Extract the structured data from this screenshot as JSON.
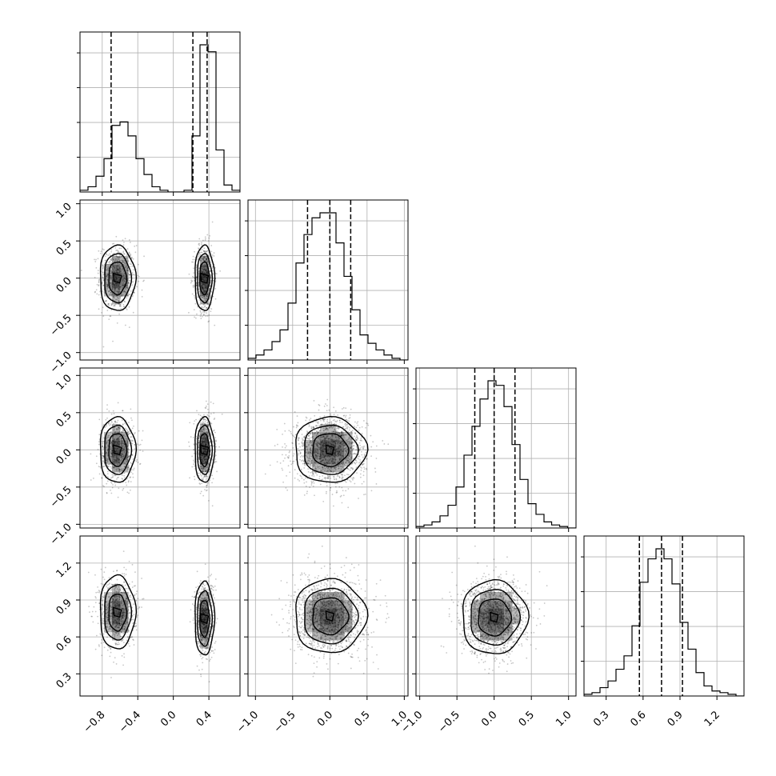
{
  "chart_data": {
    "type": "corner",
    "title": "",
    "parameters": [
      {
        "label": "",
        "range": [
          -1.05,
          0.75
        ],
        "ticks": [
          -0.8,
          -0.4,
          0.0,
          0.4
        ],
        "tick_labels": [
          "−0.8",
          "−0.4",
          "0.0",
          "0.4"
        ],
        "quantiles": [
          -0.7,
          0.22,
          0.38
        ]
      },
      {
        "label": "",
        "range": [
          -1.1,
          1.05
        ],
        "ticks": [
          -1.0,
          -0.5,
          0.0,
          0.5,
          1.0
        ],
        "tick_labels": [
          "−1.0",
          "−0.5",
          "0.0",
          "0.5",
          "1.0"
        ],
        "quantiles": [
          -0.3,
          0.0,
          0.28
        ]
      },
      {
        "label": "",
        "range": [
          -1.05,
          1.1
        ],
        "ticks": [
          -1.0,
          -0.5,
          0.0,
          0.5,
          1.0
        ],
        "tick_labels": [
          "−1.0",
          "−0.5",
          "0.0",
          "0.5",
          "1.0"
        ],
        "quantiles": [
          -0.26,
          0.0,
          0.28
        ]
      },
      {
        "label": "",
        "range": [
          0.12,
          1.42
        ],
        "ticks": [
          0.3,
          0.6,
          0.9,
          1.2
        ],
        "tick_labels": [
          "0.3",
          "0.6",
          "0.9",
          "1.2"
        ],
        "quantiles": [
          0.57,
          0.75,
          0.92
        ]
      }
    ],
    "histograms": [
      {
        "param": 0,
        "bin_edges": [
          -1.05,
          -0.96,
          -0.87,
          -0.78,
          -0.69,
          -0.6,
          -0.51,
          -0.42,
          -0.33,
          -0.24,
          -0.15,
          -0.06,
          0.03,
          0.12,
          0.21,
          0.3,
          0.39,
          0.48,
          0.57,
          0.66,
          0.75
        ],
        "counts": [
          1,
          3,
          9,
          19,
          38,
          40,
          32,
          19,
          10,
          3,
          1,
          0,
          0,
          1,
          32,
          84,
          80,
          24,
          4,
          1
        ]
      },
      {
        "param": 1,
        "bin_edges": [
          -1.1,
          -0.9925,
          -0.885,
          -0.7775,
          -0.67,
          -0.5625,
          -0.455,
          -0.3475,
          -0.24,
          -0.1325,
          -0.025,
          0.0825,
          0.19,
          0.2975,
          0.405,
          0.5125,
          0.62,
          0.7275,
          0.835,
          0.9425,
          1.05
        ],
        "counts": [
          1,
          3,
          6,
          11,
          18,
          34,
          58,
          75,
          85,
          88,
          88,
          70,
          50,
          30,
          15,
          10,
          6,
          3,
          1,
          0
        ]
      },
      {
        "param": 2,
        "bin_edges": [
          -1.05,
          -0.9425,
          -0.835,
          -0.7275,
          -0.62,
          -0.5125,
          -0.405,
          -0.2975,
          -0.19,
          -0.0825,
          0.025,
          0.1325,
          0.24,
          0.3475,
          0.455,
          0.5625,
          0.67,
          0.7725,
          0.88,
          0.9875,
          1.1
        ],
        "counts": [
          1,
          2,
          4,
          8,
          15,
          27,
          48,
          67,
          85,
          97,
          94,
          80,
          55,
          32,
          16,
          9,
          4,
          2,
          1,
          0
        ]
      },
      {
        "param": 3,
        "bin_edges": [
          0.12,
          0.185,
          0.25,
          0.315,
          0.38,
          0.445,
          0.51,
          0.575,
          0.64,
          0.705,
          0.77,
          0.835,
          0.9,
          0.965,
          1.03,
          1.095,
          1.16,
          1.225,
          1.29,
          1.355,
          1.42
        ],
        "counts": [
          1,
          2,
          5,
          9,
          16,
          24,
          42,
          68,
          82,
          88,
          82,
          67,
          44,
          28,
          14,
          6,
          3,
          2,
          1,
          0
        ]
      }
    ],
    "pairs": [
      {
        "x_param": 0,
        "y_param": 1,
        "modes": [
          {
            "center": [
              -0.63,
              0.0
            ],
            "sigma": [
              0.1,
              0.22
            ],
            "weight": 0.5
          },
          {
            "center": [
              0.35,
              0.0
            ],
            "sigma": [
              0.055,
              0.22
            ],
            "weight": 0.5
          }
        ]
      },
      {
        "x_param": 0,
        "y_param": 2,
        "modes": [
          {
            "center": [
              -0.63,
              0.0
            ],
            "sigma": [
              0.1,
              0.22
            ],
            "weight": 0.5
          },
          {
            "center": [
              0.35,
              0.0
            ],
            "sigma": [
              0.055,
              0.22
            ],
            "weight": 0.5
          }
        ]
      },
      {
        "x_param": 1,
        "y_param": 2,
        "modes": [
          {
            "center": [
              0.0,
              0.0
            ],
            "sigma": [
              0.24,
              0.22
            ],
            "weight": 1.0
          }
        ]
      },
      {
        "x_param": 0,
        "y_param": 3,
        "modes": [
          {
            "center": [
              -0.63,
              0.8
            ],
            "sigma": [
              0.1,
              0.15
            ],
            "weight": 0.5
          },
          {
            "center": [
              0.35,
              0.75
            ],
            "sigma": [
              0.055,
              0.15
            ],
            "weight": 0.5
          }
        ]
      },
      {
        "x_param": 1,
        "y_param": 3,
        "modes": [
          {
            "center": [
              0.0,
              0.77
            ],
            "sigma": [
              0.24,
              0.15
            ],
            "weight": 1.0
          }
        ]
      },
      {
        "x_param": 2,
        "y_param": 3,
        "modes": [
          {
            "center": [
              0.0,
              0.76
            ],
            "sigma": [
              0.22,
              0.15
            ],
            "weight": 1.0
          }
        ]
      }
    ],
    "contour_levels_sigma": [
      1,
      1.5,
      2
    ],
    "grid": true
  }
}
